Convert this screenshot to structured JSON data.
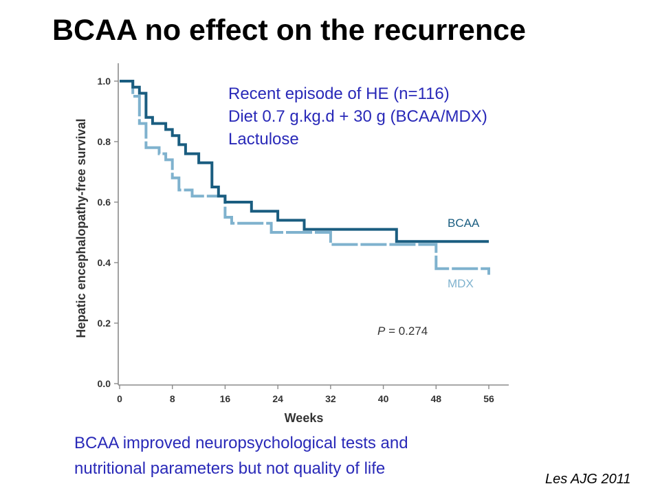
{
  "slide": {
    "title": "BCAA no effect on the recurrence",
    "study_info": [
      "Recent episode of HE (n=116)",
      "Diet 0.7 g.kg.d + 30 g (BCAA/MDX)",
      "Lactulose"
    ],
    "conclusion": [
      "BCAA improved neuropsychological tests and",
      "nutritional parameters but not quality of life"
    ],
    "citation": "Les AJG 2011",
    "text_color": "#2929b8"
  },
  "chart_data": {
    "type": "line",
    "style": "kaplan-meier step",
    "xlabel": "Weeks",
    "ylabel": "Hepatic encephalopathy-free survival",
    "xlim": [
      0,
      56
    ],
    "ylim": [
      0,
      1.0
    ],
    "x_ticks": [
      "0",
      "8",
      "16",
      "24",
      "32",
      "40",
      "48",
      "56"
    ],
    "y_ticks": [
      "0.0",
      "0.2",
      "0.4",
      "0.6",
      "0.8",
      "1.0"
    ],
    "grid": false,
    "annotation": {
      "prefix": "P",
      "text": " = 0.274"
    },
    "series": [
      {
        "name": "BCAA",
        "color": "#1a5d80",
        "line_style": "solid",
        "points": [
          [
            0,
            1.0
          ],
          [
            2,
            0.98
          ],
          [
            3,
            0.96
          ],
          [
            4,
            0.88
          ],
          [
            5,
            0.86
          ],
          [
            7,
            0.84
          ],
          [
            8,
            0.82
          ],
          [
            9,
            0.79
          ],
          [
            10,
            0.76
          ],
          [
            12,
            0.73
          ],
          [
            14,
            0.65
          ],
          [
            15,
            0.62
          ],
          [
            16,
            0.6
          ],
          [
            20,
            0.57
          ],
          [
            24,
            0.54
          ],
          [
            28,
            0.51
          ],
          [
            42,
            0.47
          ],
          [
            56,
            0.47
          ]
        ]
      },
      {
        "name": "MDX",
        "color": "#7fb2ce",
        "line_style": "dashed",
        "points": [
          [
            0,
            1.0
          ],
          [
            2,
            0.95
          ],
          [
            3,
            0.86
          ],
          [
            4,
            0.78
          ],
          [
            6,
            0.76
          ],
          [
            7,
            0.74
          ],
          [
            8,
            0.68
          ],
          [
            9,
            0.64
          ],
          [
            11,
            0.62
          ],
          [
            16,
            0.55
          ],
          [
            17,
            0.53
          ],
          [
            23,
            0.5
          ],
          [
            32,
            0.46
          ],
          [
            48,
            0.38
          ],
          [
            56,
            0.36
          ]
        ]
      }
    ]
  }
}
